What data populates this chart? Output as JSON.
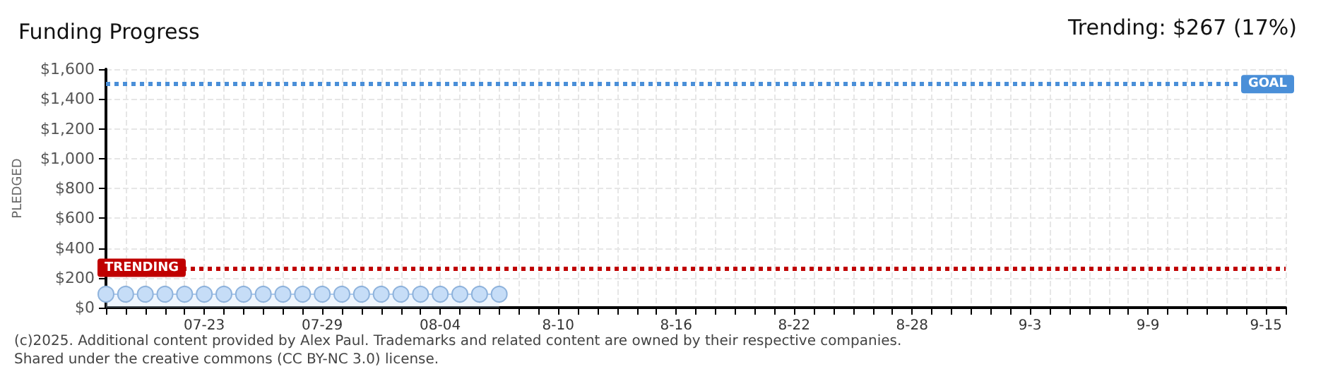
{
  "chart_data": {
    "type": "area",
    "title": "Funding Progress",
    "ylabel": "PLEDGED",
    "annotations": [
      "Trending: $267 (17%)",
      "(c)2025. Additional content provided by Alex Paul. Trademarks and related content are owned by their respective companies.",
      "Shared under the creative commons (CC BY-NC 3.0) license."
    ],
    "categories": [
      null,
      null,
      null,
      null,
      null,
      "07-23",
      null,
      null,
      null,
      null,
      null,
      "07-29",
      null,
      null,
      null,
      null,
      null,
      "08-04",
      null,
      null,
      null,
      null,
      null,
      "8-10",
      null,
      null,
      null,
      null,
      null,
      "8-16",
      null,
      null,
      null,
      null,
      null,
      "8-22",
      null,
      null,
      null,
      null,
      null,
      "8-28",
      null,
      null,
      null,
      null,
      null,
      "9-3",
      null,
      null,
      null,
      null,
      null,
      "9-9",
      null,
      null,
      null,
      null,
      null,
      "9-15",
      null
    ],
    "series": [
      {
        "color": "#c6ddf7",
        "values": [
          90,
          90,
          90,
          90,
          90,
          90,
          90,
          90,
          90,
          90,
          90,
          90,
          90,
          90,
          90,
          90,
          90,
          90,
          90,
          90,
          90,
          null,
          null,
          null,
          null,
          null,
          null,
          null,
          null,
          null,
          null,
          null,
          null,
          null,
          null,
          null,
          null,
          null,
          null,
          null,
          null,
          null,
          null,
          null,
          null,
          null,
          null,
          null,
          null,
          null,
          null,
          null,
          null,
          null,
          null,
          null,
          null,
          null,
          null,
          null,
          null
        ]
      }
    ],
    "ylim": [
      0,
      1600
    ],
    "yticks": [
      {
        "value": 0,
        "label": "$0"
      },
      {
        "value": 200,
        "label": "$200"
      },
      {
        "value": 400,
        "label": "$400"
      },
      {
        "value": 600,
        "label": "$600"
      },
      {
        "value": 800,
        "label": "$800"
      },
      {
        "value": 1000,
        "label": "$1,000"
      },
      {
        "value": 1200,
        "label": "$1,200"
      },
      {
        "value": 1400,
        "label": "$1,400"
      },
      {
        "value": 1600,
        "label": "$1,600"
      }
    ],
    "ref_lines": [
      {
        "axis": "y",
        "value": 1500,
        "label": "GOAL",
        "color": "#4a8fd8",
        "line_style": "dotted"
      },
      {
        "axis": "y",
        "value": 267,
        "label": "TRENDING",
        "color": "#c00000",
        "line_style": "dotted"
      }
    ],
    "grid": true,
    "marker": "circle",
    "line_style": "solid"
  }
}
